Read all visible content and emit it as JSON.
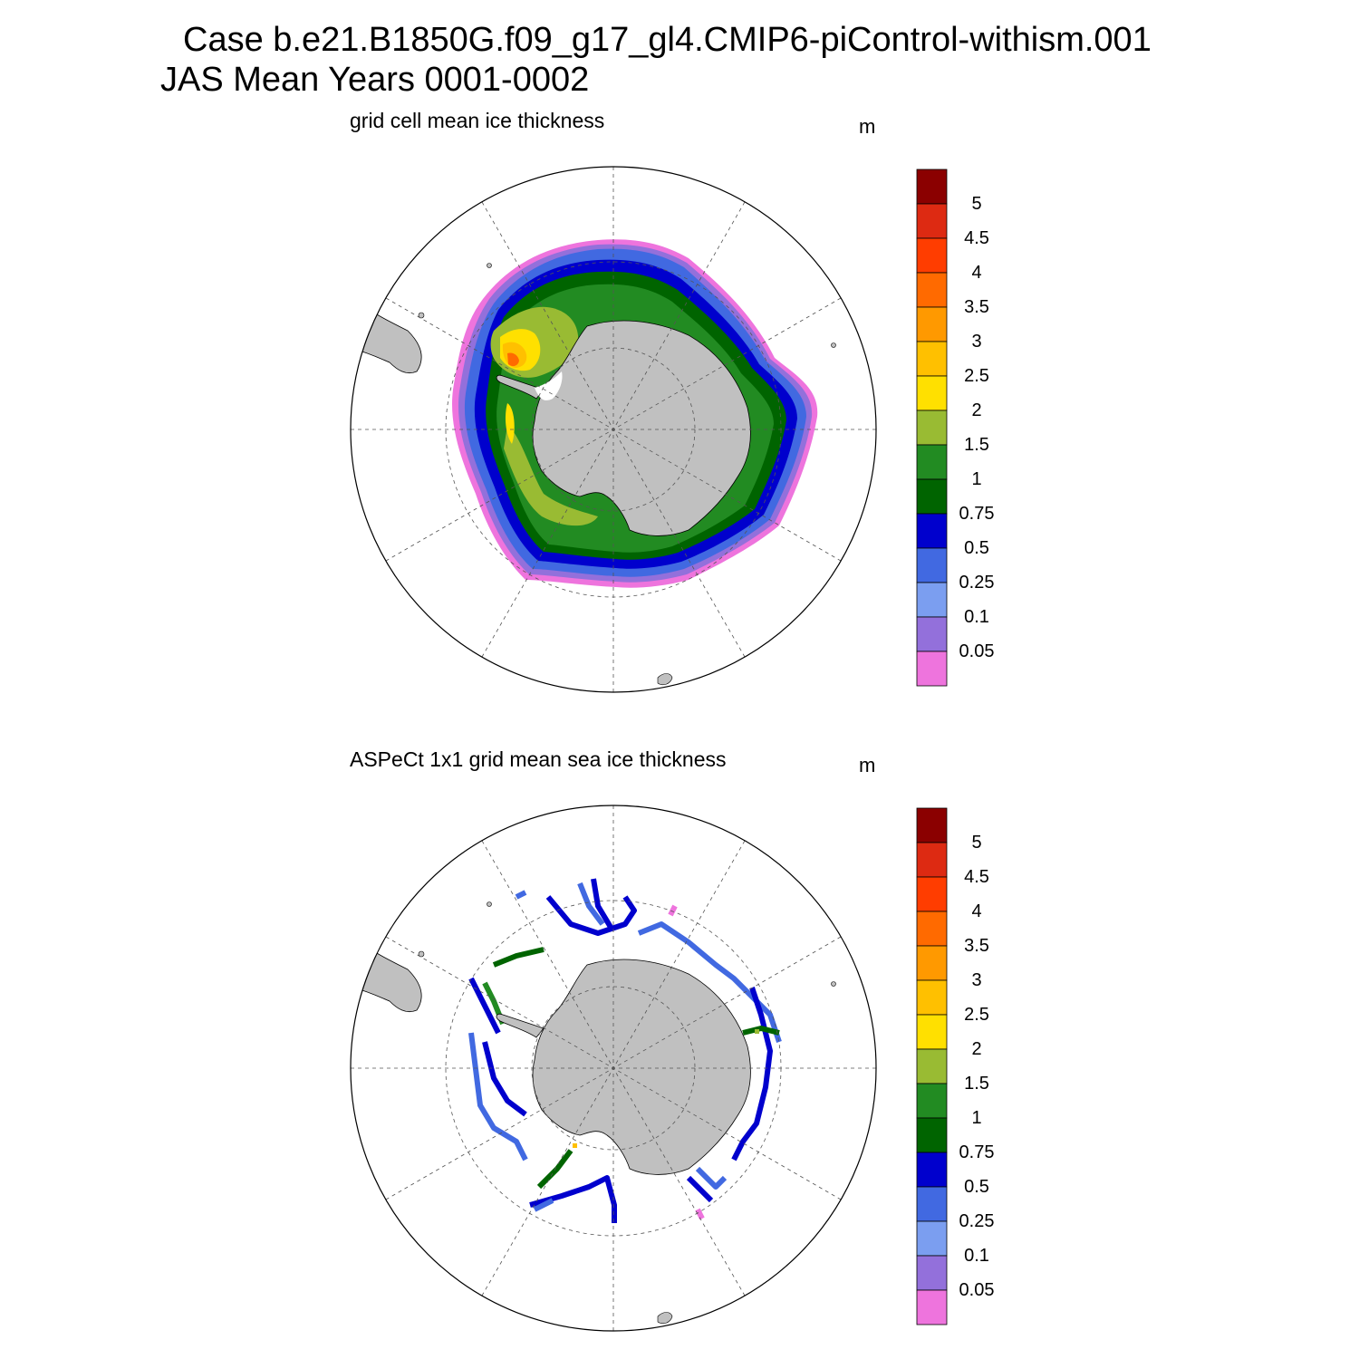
{
  "title": {
    "line1": "Case b.e21.B1850G.f09_g17_gl4.CMIP6-piControl-withism.001",
    "line2": "JAS Mean   Years 0001-0002"
  },
  "panels": [
    {
      "id": "model",
      "title": "grid cell mean ice thickness",
      "units": "m"
    },
    {
      "id": "obs",
      "title": "ASPeCt 1x1 grid mean sea ice thickness",
      "units": "m"
    }
  ],
  "colorbar": {
    "labels": [
      "5",
      "4.5",
      "4",
      "3.5",
      "3",
      "2.5",
      "2",
      "1.5",
      "1",
      "0.75",
      "0.5",
      "0.25",
      "0.1",
      "0.05"
    ],
    "colors": [
      "#8b0000",
      "#dd2a12",
      "#ff3d00",
      "#ff6a00",
      "#ff9900",
      "#ffc000",
      "#ffe000",
      "#99bb33",
      "#228b22",
      "#006400",
      "#0000cd",
      "#4169e1",
      "#7b9ef0",
      "#9370db",
      "#ee74dd"
    ]
  },
  "map": {
    "projection": "south-polar-stereographic",
    "land_color": "#c0c0c0",
    "gridline_style": "dashed"
  }
}
